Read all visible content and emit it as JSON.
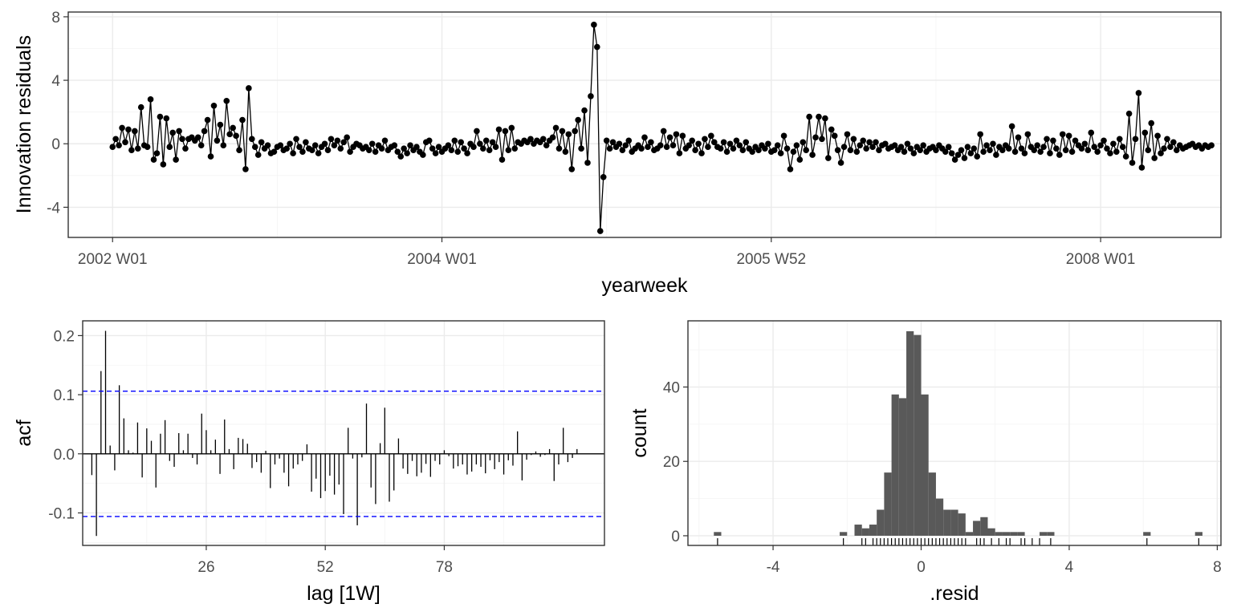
{
  "chart_data": [
    {
      "type": "line",
      "xlabel": "yearweek",
      "ylabel": "Innovation residuals",
      "x_tick_labels": [
        "2002 W01",
        "2004 W01",
        "2005 W52",
        "2008 W01"
      ],
      "x_ticks": [
        0,
        104,
        208,
        312
      ],
      "ylim": [
        -5.9,
        8.3
      ],
      "y_ticks": [
        -4,
        0,
        4,
        8
      ],
      "y_tick_labels": [
        "-4",
        "0",
        "4",
        "8"
      ],
      "grid": true,
      "series_color": "#000000",
      "x_start_week": 0,
      "values": [
        -0.2,
        0.3,
        -0.1,
        1.0,
        0.1,
        0.9,
        -0.4,
        0.8,
        -0.3,
        2.3,
        -0.1,
        -0.2,
        2.8,
        -1.0,
        -0.6,
        1.7,
        -1.3,
        1.6,
        -0.2,
        0.7,
        -1.0,
        0.8,
        0.3,
        -0.3,
        0.3,
        0.4,
        0.2,
        0.4,
        -0.1,
        0.8,
        1.5,
        -0.8,
        2.4,
        0.2,
        1.2,
        -0.1,
        2.7,
        0.6,
        1.0,
        0.5,
        -0.4,
        1.5,
        -1.6,
        3.5,
        0.3,
        -0.2,
        -0.7,
        0.1,
        -0.3,
        -0.1,
        -0.6,
        -0.5,
        -0.2,
        -0.1,
        -0.4,
        -0.3,
        0.0,
        -0.6,
        0.3,
        -0.2,
        -0.5,
        0.1,
        -0.3,
        -0.4,
        -0.1,
        -0.6,
        -0.2,
        0.0,
        -0.4,
        0.3,
        -0.1,
        0.2,
        -0.3,
        0.1,
        0.4,
        -0.5,
        -0.2,
        0.0,
        -0.1,
        -0.3,
        -0.2,
        -0.4,
        0.0,
        -0.5,
        -0.1,
        -0.3,
        0.2,
        -0.4,
        -0.2,
        -0.1,
        -0.5,
        -0.8,
        -0.3,
        -0.6,
        -0.1,
        -0.4,
        -0.2,
        -0.5,
        -0.7,
        0.1,
        0.2,
        -0.3,
        -0.6,
        -0.2,
        -0.5,
        -0.3,
        -0.1,
        -0.4,
        0.2,
        -0.5,
        0.1,
        -0.3,
        -0.6,
        0.0,
        -0.2,
        0.8,
        0.0,
        -0.3,
        0.2,
        -0.4,
        0.1,
        -0.2,
        0.9,
        -1.0,
        0.8,
        -0.4,
        1.0,
        -0.3,
        0.1,
        0.0,
        0.2,
        0.1,
        0.3,
        0.0,
        0.2,
        0.1,
        0.3,
        -0.1,
        0.2,
        0.4,
        1.0,
        -0.3,
        0.8,
        -0.5,
        0.6,
        -1.6,
        0.8,
        1.5,
        -0.3,
        2.1,
        -1.2,
        3.0,
        7.5,
        6.1,
        -5.5,
        -2.1,
        0.2,
        -0.3,
        0.1,
        -0.2,
        0.0,
        -0.4,
        -0.1,
        0.2,
        -0.5,
        -0.3,
        -0.1,
        -0.3,
        0.4,
        -0.2,
        0.1,
        -0.4,
        -0.3,
        -0.1,
        0.8,
        -0.2,
        0.4,
        -0.1,
        0.6,
        -0.6,
        0.5,
        -0.3,
        -0.1,
        0.2,
        -0.4,
        0.0,
        -0.6,
        0.3,
        -0.2,
        0.5,
        0.1,
        -0.2,
        -0.3,
        0.1,
        -0.5,
        0.0,
        -0.3,
        0.2,
        -0.1,
        -0.4,
        0.1,
        -0.3,
        -0.5,
        -0.2,
        -0.4,
        -0.1,
        -0.3,
        0.0,
        -0.5,
        -0.4,
        -0.1,
        -0.6,
        0.5,
        -0.3,
        -1.6,
        -0.5,
        -0.1,
        -1.0,
        0.1,
        -0.4,
        1.7,
        -0.7,
        0.4,
        1.7,
        0.3,
        1.6,
        -0.9,
        0.9,
        0.5,
        -0.4,
        -1.2,
        -0.2,
        0.6,
        -0.4,
        0.3,
        -0.5,
        -0.1,
        0.2,
        -0.3,
        0.1,
        -0.2,
        0.1,
        -0.4,
        -0.1,
        0.0,
        -0.3,
        -0.2,
        -0.1,
        -0.4,
        -0.2,
        -0.5,
        0.0,
        -0.3,
        -0.6,
        -0.2,
        -0.4,
        -0.1,
        -0.5,
        -0.3,
        -0.2,
        -0.4,
        -0.1,
        -0.3,
        -0.5,
        -0.2,
        -0.6,
        -1.0,
        -0.7,
        -0.4,
        -0.9,
        -0.2,
        -0.6,
        -0.3,
        -0.8,
        0.6,
        -0.5,
        -0.1,
        -0.4,
        0.0,
        -0.7,
        -0.2,
        -0.4,
        -0.1,
        -0.3,
        1.1,
        -0.5,
        0.4,
        -0.3,
        -0.6,
        0.6,
        -0.2,
        -0.4,
        -0.1,
        -0.5,
        -0.2,
        0.3,
        -0.6,
        0.2,
        -0.3,
        -0.7,
        0.6,
        -0.4,
        0.5,
        -0.5,
        0.2,
        -0.1,
        -0.3,
        0.0,
        -0.4,
        0.7,
        -0.2,
        -0.5,
        -0.1,
        0.2,
        -0.3,
        -0.6,
        0.0,
        -0.5,
        0.3,
        -0.2,
        -0.8,
        1.9,
        -1.2,
        0.3,
        3.2,
        -1.5,
        0.7,
        -0.4,
        1.3,
        -0.9,
        0.5,
        -0.6,
        -0.3,
        0.3,
        -0.2,
        0.1,
        -0.4,
        -0.1,
        -0.3,
        -0.2,
        -0.1,
        0.0,
        -0.2,
        -0.1,
        -0.3,
        -0.1,
        -0.2,
        -0.1
      ]
    },
    {
      "type": "bar",
      "xlabel": "lag [1W]",
      "ylabel": "acf",
      "xlim": [
        -1,
        113
      ],
      "ylim": [
        -0.155,
        0.225
      ],
      "x_ticks": [
        26,
        52,
        78
      ],
      "x_tick_labels": [
        "26",
        "52",
        "78"
      ],
      "y_ticks": [
        -0.1,
        0.0,
        0.1,
        0.2
      ],
      "y_tick_labels": [
        "-0.1",
        "0.0",
        "0.1",
        "0.2"
      ],
      "conf_bounds": [
        0.106,
        -0.106
      ],
      "conf_color": "#0000ff",
      "grid": true,
      "lags": [
        1,
        2,
        3,
        4,
        5,
        6,
        7,
        8,
        9,
        10,
        11,
        12,
        13,
        14,
        15,
        16,
        17,
        18,
        19,
        20,
        21,
        22,
        23,
        24,
        25,
        26,
        27,
        28,
        29,
        30,
        31,
        32,
        33,
        34,
        35,
        36,
        37,
        38,
        39,
        40,
        41,
        42,
        43,
        44,
        45,
        46,
        47,
        48,
        49,
        50,
        51,
        52,
        53,
        54,
        55,
        56,
        57,
        58,
        59,
        60,
        61,
        62,
        63,
        64,
        65,
        66,
        67,
        68,
        69,
        70,
        71,
        72,
        73,
        74,
        75,
        76,
        77,
        78,
        79,
        80,
        81,
        82,
        83,
        84,
        85,
        86,
        87,
        88,
        89,
        90,
        91,
        92,
        93,
        94,
        95,
        96,
        97,
        98,
        99,
        100,
        101,
        102,
        103,
        104,
        105,
        106,
        107
      ],
      "values": [
        -0.036,
        -0.139,
        0.14,
        0.208,
        0.014,
        -0.028,
        0.116,
        0.06,
        0.006,
        0.002,
        0.053,
        -0.04,
        0.043,
        0.022,
        -0.057,
        0.034,
        0.057,
        -0.012,
        -0.022,
        0.035,
        0.006,
        0.034,
        -0.007,
        -0.018,
        0.068,
        0.04,
        0.006,
        0.024,
        -0.034,
        0.058,
        0.008,
        -0.026,
        0.027,
        0.025,
        0.017,
        -0.024,
        -0.014,
        -0.032,
        0.005,
        -0.058,
        -0.018,
        -0.008,
        -0.032,
        -0.055,
        -0.025,
        -0.018,
        -0.012,
        0.016,
        -0.064,
        -0.042,
        -0.075,
        -0.063,
        -0.037,
        -0.069,
        -0.052,
        -0.102,
        0.044,
        -0.008,
        -0.121,
        -0.006,
        0.085,
        -0.057,
        -0.085,
        0.018,
        0.078,
        -0.081,
        -0.062,
        0.026,
        -0.025,
        -0.034,
        -0.012,
        -0.038,
        -0.032,
        -0.017,
        -0.039,
        -0.012,
        -0.018,
        0.006,
        -0.004,
        -0.025,
        -0.021,
        -0.018,
        -0.035,
        -0.03,
        -0.018,
        -0.022,
        -0.033,
        -0.011,
        -0.026,
        -0.014,
        -0.035,
        -0.011,
        -0.02,
        0.038,
        -0.045,
        -0.01,
        -0.002,
        0.004,
        -0.005,
        -0.002,
        0.008,
        -0.046,
        -0.018,
        0.044,
        -0.014,
        -0.007,
        0.008
      ]
    },
    {
      "type": "bar",
      "xlabel": ".resid",
      "ylabel": "count",
      "xlim": [
        -6.3,
        8.1
      ],
      "ylim": [
        -2.6,
        57.8
      ],
      "x_ticks": [
        -4,
        0,
        4,
        8
      ],
      "x_tick_labels": [
        "-4",
        "0",
        "4",
        "8"
      ],
      "y_ticks": [
        0,
        20,
        40
      ],
      "y_tick_labels": [
        "0",
        "20",
        "40"
      ],
      "bar_color": "#595959",
      "grid": true,
      "bin_width": 0.2,
      "bin_starts": [
        -5.6,
        -2.2,
        -1.8,
        -1.6,
        -1.4,
        -1.2,
        -1.0,
        -0.8,
        -0.6,
        -0.4,
        -0.2,
        0.0,
        0.2,
        0.4,
        0.6,
        0.8,
        1.0,
        1.2,
        1.4,
        1.6,
        1.8,
        2.0,
        2.2,
        2.4,
        2.6,
        3.2,
        3.4,
        6.0,
        7.4
      ],
      "counts": [
        1,
        1,
        3,
        2,
        3,
        7,
        17,
        38,
        37,
        55,
        54,
        38,
        17,
        10,
        7,
        7,
        6,
        1,
        4,
        5,
        2,
        1,
        1,
        1,
        1,
        1,
        1,
        1,
        1
      ],
      "rug": [
        -5.5,
        -2.1,
        -1.6,
        -1.5,
        -1.3,
        -1.2,
        -1.1,
        -1.0,
        -0.9,
        -0.8,
        -0.7,
        -0.6,
        -0.5,
        -0.4,
        -0.3,
        -0.2,
        -0.1,
        0.0,
        0.1,
        0.2,
        0.3,
        0.4,
        0.5,
        0.6,
        0.7,
        0.8,
        0.9,
        1.0,
        1.1,
        1.2,
        1.5,
        1.6,
        1.7,
        1.9,
        2.1,
        2.3,
        2.4,
        2.7,
        2.8,
        3.0,
        3.2,
        3.5,
        6.1,
        7.5
      ]
    }
  ]
}
